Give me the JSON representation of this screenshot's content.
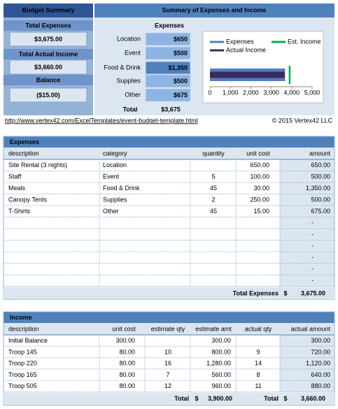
{
  "budget_summary": {
    "title": "Budget Summary",
    "items": [
      {
        "label": "Total Expenses",
        "value": "$3,675.00"
      },
      {
        "label": "Total Actual Income",
        "value": "$3,660.00"
      },
      {
        "label": "Balance",
        "value": "($15.00)"
      }
    ]
  },
  "summary": {
    "title": "Summary of Expenses and Income",
    "expenses_heading": "Expenses",
    "rows": [
      {
        "label": "Location",
        "value": "$650"
      },
      {
        "label": "Event",
        "value": "$500"
      },
      {
        "label": "Food & Drink",
        "value": "$1,350"
      },
      {
        "label": "Supplies",
        "value": "$500"
      },
      {
        "label": "Other",
        "value": "$675"
      }
    ],
    "total_label": "Total",
    "total_value": "$3,675"
  },
  "chart_data": {
    "type": "bar",
    "orientation": "horizontal",
    "categories": [
      null
    ],
    "series": [
      {
        "name": "Expenses",
        "color": "#4f81bd",
        "values": [
          3675
        ]
      },
      {
        "name": "Est. Income",
        "color": "#00b050",
        "values": [
          3900
        ],
        "style": "marker-line"
      },
      {
        "name": "Actual Income",
        "color": "#3b2a5e",
        "values": [
          3660
        ]
      }
    ],
    "xlim": [
      0,
      5000
    ],
    "xticks": [
      0,
      {
        "value": 1000,
        "label": "1,000"
      },
      {
        "value": 2000,
        "label": "2,000"
      },
      {
        "value": 3000,
        "label": "3,000"
      },
      {
        "value": 4000,
        "label": "4,000"
      },
      {
        "value": 5000,
        "label": "5,000"
      }
    ],
    "grid": false,
    "legend": "top"
  },
  "footer": {
    "link": "http://www.vertex42.com/ExcelTemplates/event-budget-template.html",
    "copyright": "© 2015 Vertex42 LLC"
  },
  "expenses": {
    "title": "Expenses",
    "columns": [
      "description",
      "category",
      "quantity",
      "unit cost",
      "amount"
    ],
    "rows": [
      [
        "Site Rental (3 nights)",
        "Location",
        null,
        "650.00",
        "650.00"
      ],
      [
        "Staff",
        "Event",
        "5",
        "100.00",
        "500.00"
      ],
      [
        "Meals",
        "Food & Drink",
        "45",
        "30.00",
        "1,350.00"
      ],
      [
        "Canopy Tents",
        "Supplies",
        "2",
        "250.00",
        "500.00"
      ],
      [
        "T-Shirts",
        "Other",
        "45",
        "15.00",
        "675.00"
      ]
    ],
    "blank_rows": [
      "-",
      "-",
      "-",
      "-",
      "-",
      "-"
    ],
    "total_label": "Total Expenses",
    "total_currency": "$",
    "total_value": "3,675.00"
  },
  "income": {
    "title": "Income",
    "columns": [
      "description",
      "unit cost",
      "estimate qty",
      "estimate amt",
      "actual qty",
      "actual amount"
    ],
    "rows": [
      [
        "Initial Balance",
        "300.00",
        null,
        "300.00",
        null,
        "300.00"
      ],
      [
        "Troop 145",
        "80.00",
        "10",
        "800.00",
        "9",
        "720.00"
      ],
      [
        "Troop 220",
        "80.00",
        "16",
        "1,280.00",
        "14",
        "1,120.00"
      ],
      [
        "Troop 165",
        "80.00",
        "7",
        "560.00",
        "8",
        "640.00"
      ],
      [
        "Troop 505",
        "80.00",
        "12",
        "960.00",
        "11",
        "880.00"
      ]
    ],
    "est_total_label": "Total",
    "est_total_currency": "$",
    "est_total_value": "3,900.00",
    "actual_total_label": "Total",
    "actual_total_currency": "$",
    "actual_total_value": "3,660.00"
  }
}
